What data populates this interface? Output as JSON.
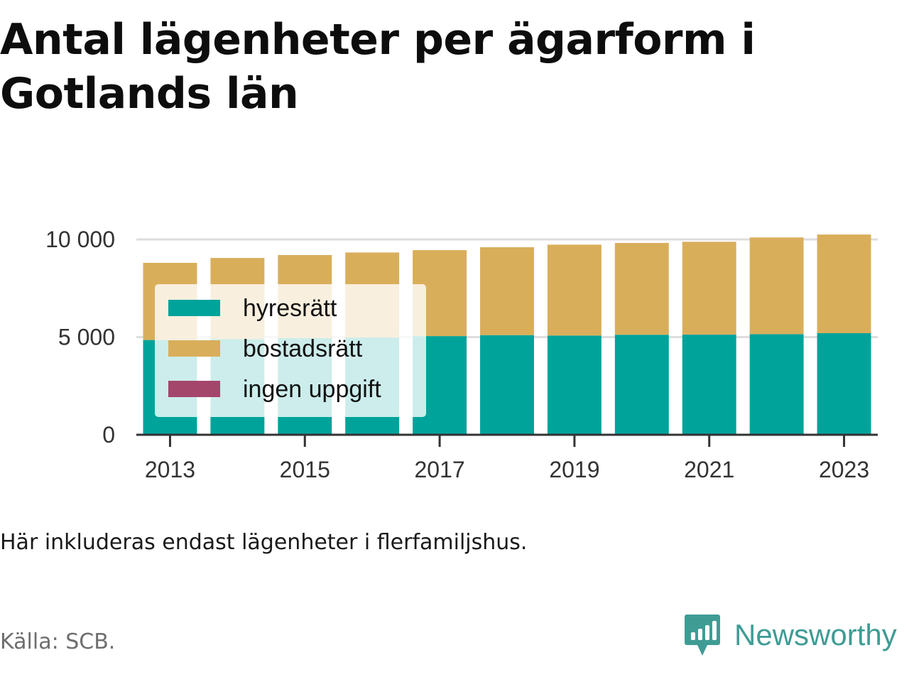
{
  "title": "Antal lägenheter per ägarform i Gotlands län",
  "note": "Här inkluderas endast lägenheter i flerfamiljshus.",
  "source": "Källa: SCB.",
  "brand": {
    "name": "Newsworthy",
    "icon": "bar-chart-speech-bubble-icon",
    "color": "#3f9c95"
  },
  "chart_data": {
    "type": "bar",
    "stacked": true,
    "categories": [
      "2013",
      "2014",
      "2015",
      "2016",
      "2017",
      "2018",
      "2019",
      "2020",
      "2021",
      "2022",
      "2023"
    ],
    "series": [
      {
        "name": "hyresrätt",
        "color": "#00a39a",
        "values": [
          4850,
          4900,
          4950,
          4980,
          5050,
          5100,
          5080,
          5120,
          5130,
          5150,
          5200
        ]
      },
      {
        "name": "bostadsrätt",
        "color": "#d9ae5b",
        "values": [
          3950,
          4150,
          4250,
          4350,
          4400,
          4500,
          4650,
          4700,
          4750,
          4950,
          5050
        ]
      },
      {
        "name": "ingen uppgift",
        "color": "#a4456c",
        "values": [
          0,
          0,
          0,
          0,
          0,
          0,
          0,
          0,
          0,
          0,
          0
        ]
      }
    ],
    "x_tick_labels": [
      "2013",
      "2015",
      "2017",
      "2019",
      "2021",
      "2023"
    ],
    "y_ticks": [
      0,
      5000,
      10000
    ],
    "y_tick_labels": [
      "0",
      "5 000",
      "10 000"
    ],
    "ylim": [
      0,
      10000
    ],
    "grid": true,
    "legend_position": "inside-left"
  }
}
